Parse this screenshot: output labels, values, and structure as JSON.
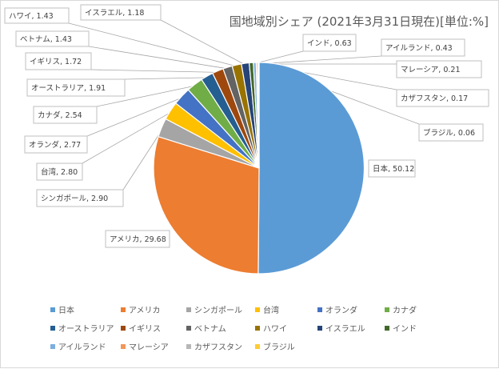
{
  "chart_data": {
    "type": "pie",
    "title": "国地域別シェア (2021年3月31日現在)[単位:%]",
    "slices": [
      {
        "name": "日本",
        "value": 50.12,
        "color": "#5b9bd5"
      },
      {
        "name": "アメリカ",
        "value": 29.68,
        "color": "#ed7d31"
      },
      {
        "name": "シンガポール",
        "value": 2.9,
        "color": "#a5a5a5"
      },
      {
        "name": "台湾",
        "value": 2.8,
        "color": "#ffc000"
      },
      {
        "name": "オランダ",
        "value": 2.77,
        "color": "#4472c4"
      },
      {
        "name": "カナダ",
        "value": 2.54,
        "color": "#70ad47"
      },
      {
        "name": "オーストラリア",
        "value": 1.91,
        "color": "#255e91"
      },
      {
        "name": "イギリス",
        "value": 1.72,
        "color": "#9e480e"
      },
      {
        "name": "ベトナム",
        "value": 1.43,
        "color": "#636363"
      },
      {
        "name": "ハワイ",
        "value": 1.43,
        "color": "#997300"
      },
      {
        "name": "イスラエル",
        "value": 1.18,
        "color": "#264478"
      },
      {
        "name": "インド",
        "value": 0.63,
        "color": "#43682b"
      },
      {
        "name": "アイルランド",
        "value": 0.43,
        "color": "#7cafdd"
      },
      {
        "name": "マレーシア",
        "value": 0.21,
        "color": "#f1975a"
      },
      {
        "name": "カザフスタン",
        "value": 0.17,
        "color": "#b7b7b7"
      },
      {
        "name": "ブラジル",
        "value": 0.06,
        "color": "#ffcd33"
      }
    ],
    "data_labels": [
      "日本, 50.12",
      "アメリカ, 29.68",
      "シンガポール, 2.90",
      "台湾, 2.80",
      "オランダ, 2.77",
      "カナダ, 2.54",
      "オーストラリア, 1.91",
      "イギリス, 1.72",
      "ベトナム, 1.43",
      "ハワイ, 1.43",
      "イスラエル, 1.18",
      "インド, 0.63",
      "アイルランド, 0.43",
      "マレーシア, 0.21",
      "カザフスタン, 0.17",
      "ブラジル, 0.06"
    ],
    "legend_position": "bottom"
  }
}
